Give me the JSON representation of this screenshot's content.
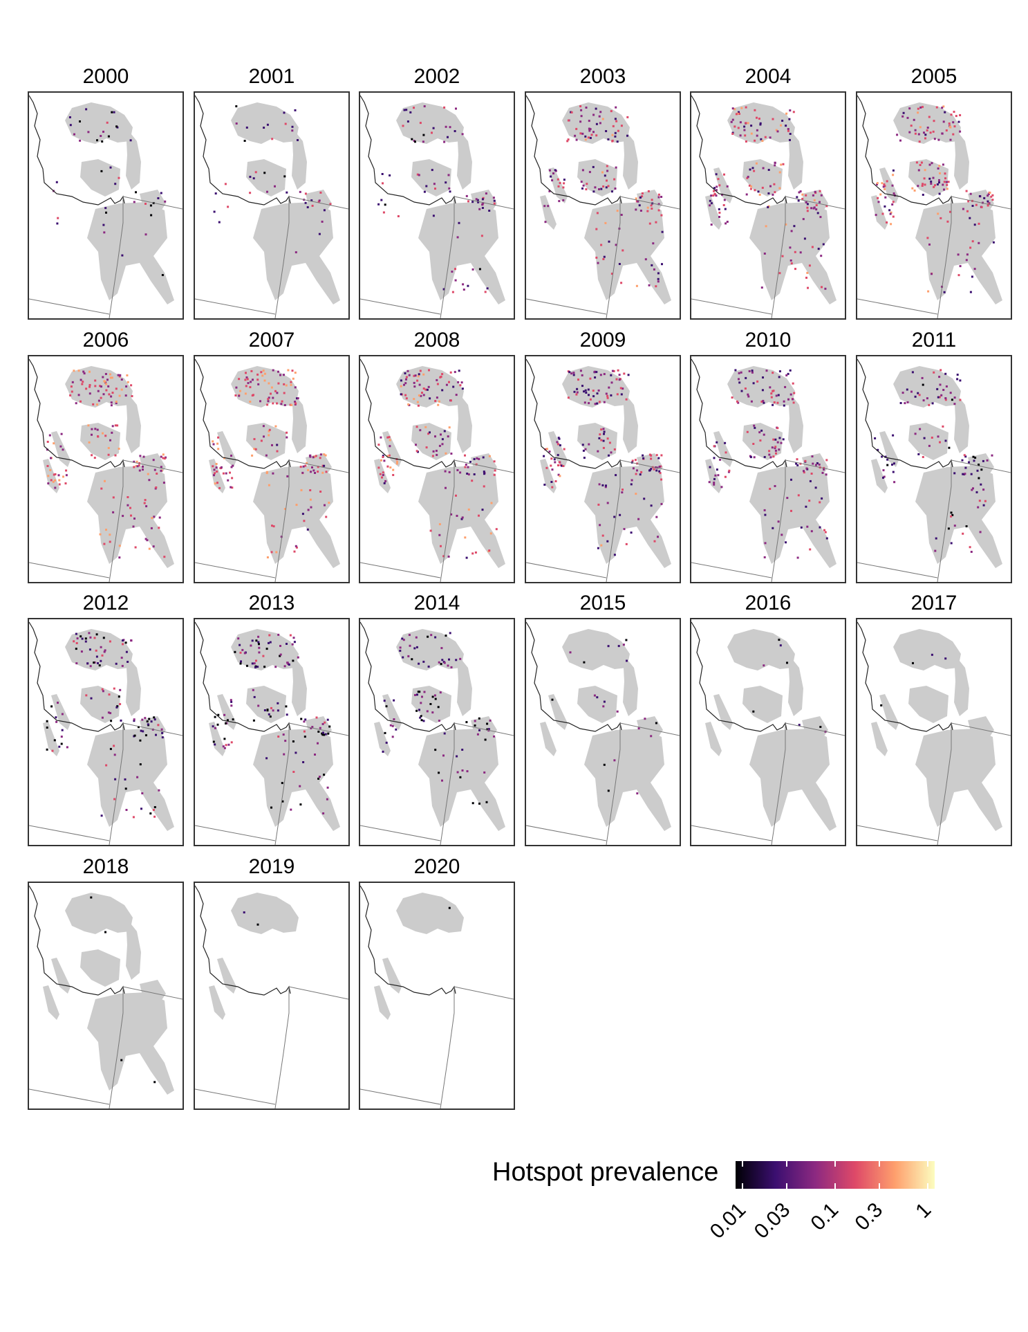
{
  "figure": {
    "years": [
      "2000",
      "2001",
      "2002",
      "2003",
      "2004",
      "2005",
      "2006",
      "2007",
      "2008",
      "2009",
      "2010",
      "2011",
      "2012",
      "2013",
      "2014",
      "2015",
      "2016",
      "2017",
      "2018",
      "2019",
      "2020"
    ],
    "colors": {
      "background_range": "#cccccc",
      "border": "#333333",
      "state_line": "#555555"
    }
  },
  "legend": {
    "title": "Hotspot prevalence",
    "scale": "log",
    "ticks": [
      "0.01",
      "0.03",
      "0.1",
      "0.3",
      "1"
    ],
    "tick_values": [
      0.01,
      0.03,
      0.1,
      0.3,
      1
    ],
    "palette": [
      "#000004",
      "#3b0f70",
      "#8c2981",
      "#de4968",
      "#fe9f6d",
      "#fcfdbf"
    ]
  }
}
